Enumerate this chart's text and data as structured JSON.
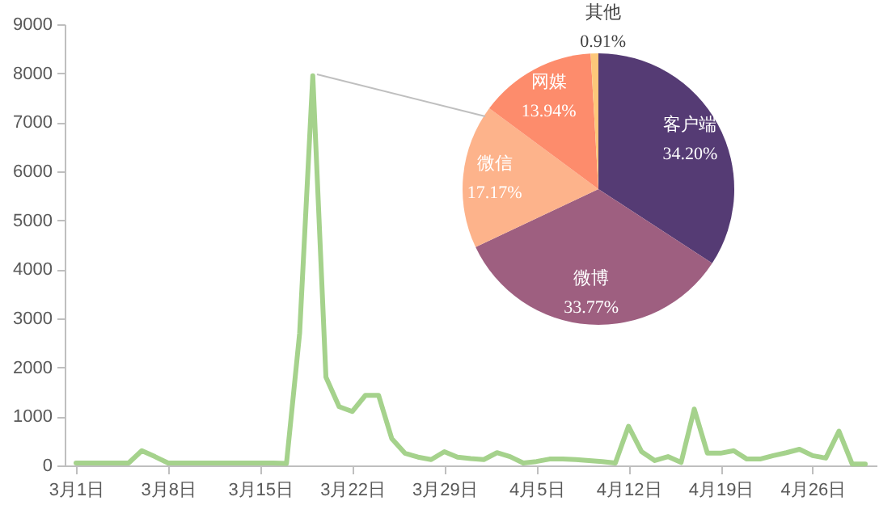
{
  "chart_data": [
    {
      "type": "line",
      "categories": [
        "3月1日",
        null,
        null,
        null,
        null,
        null,
        null,
        "3月8日",
        null,
        null,
        null,
        null,
        null,
        null,
        "3月15日",
        null,
        null,
        null,
        null,
        null,
        null,
        "3月22日",
        null,
        null,
        null,
        null,
        null,
        null,
        "3月29日",
        null,
        null,
        null,
        null,
        null,
        null,
        "4月5日",
        null,
        null,
        null,
        null,
        null,
        null,
        "4月12日",
        null,
        null,
        null,
        null,
        null,
        null,
        "4月19日",
        null,
        null,
        null,
        null,
        null,
        null,
        "4月26日",
        null,
        null,
        null,
        null
      ],
      "values": [
        50,
        50,
        50,
        50,
        50,
        300,
        180,
        50,
        50,
        50,
        50,
        50,
        50,
        50,
        50,
        50,
        40,
        2700,
        7950,
        1800,
        1200,
        1100,
        1430,
        1430,
        550,
        250,
        170,
        120,
        280,
        170,
        140,
        120,
        260,
        180,
        50,
        80,
        130,
        130,
        120,
        100,
        80,
        50,
        800,
        280,
        100,
        180,
        60,
        1150,
        250,
        250,
        300,
        130,
        130,
        200,
        260,
        330,
        200,
        150,
        700,
        30,
        30
      ],
      "color": "#a5d28c",
      "ylim": [
        0,
        9000
      ],
      "yticks": [
        0,
        1000,
        2000,
        3000,
        4000,
        5000,
        6000,
        7000,
        8000,
        9000
      ],
      "grid": false
    },
    {
      "type": "pie",
      "categories": [
        "客户端",
        "微博",
        "微信",
        "网媒",
        "其他"
      ],
      "values": [
        34.2,
        33.77,
        17.17,
        13.94,
        0.91
      ],
      "colors": [
        "#553b74",
        "#9e5f80",
        "#fdb38b",
        "#fd8c6c",
        "#fdc77a"
      ],
      "value_labels": [
        "34.20%",
        "33.77%",
        "17.17%",
        "13.94%",
        "0.91%"
      ]
    }
  ]
}
